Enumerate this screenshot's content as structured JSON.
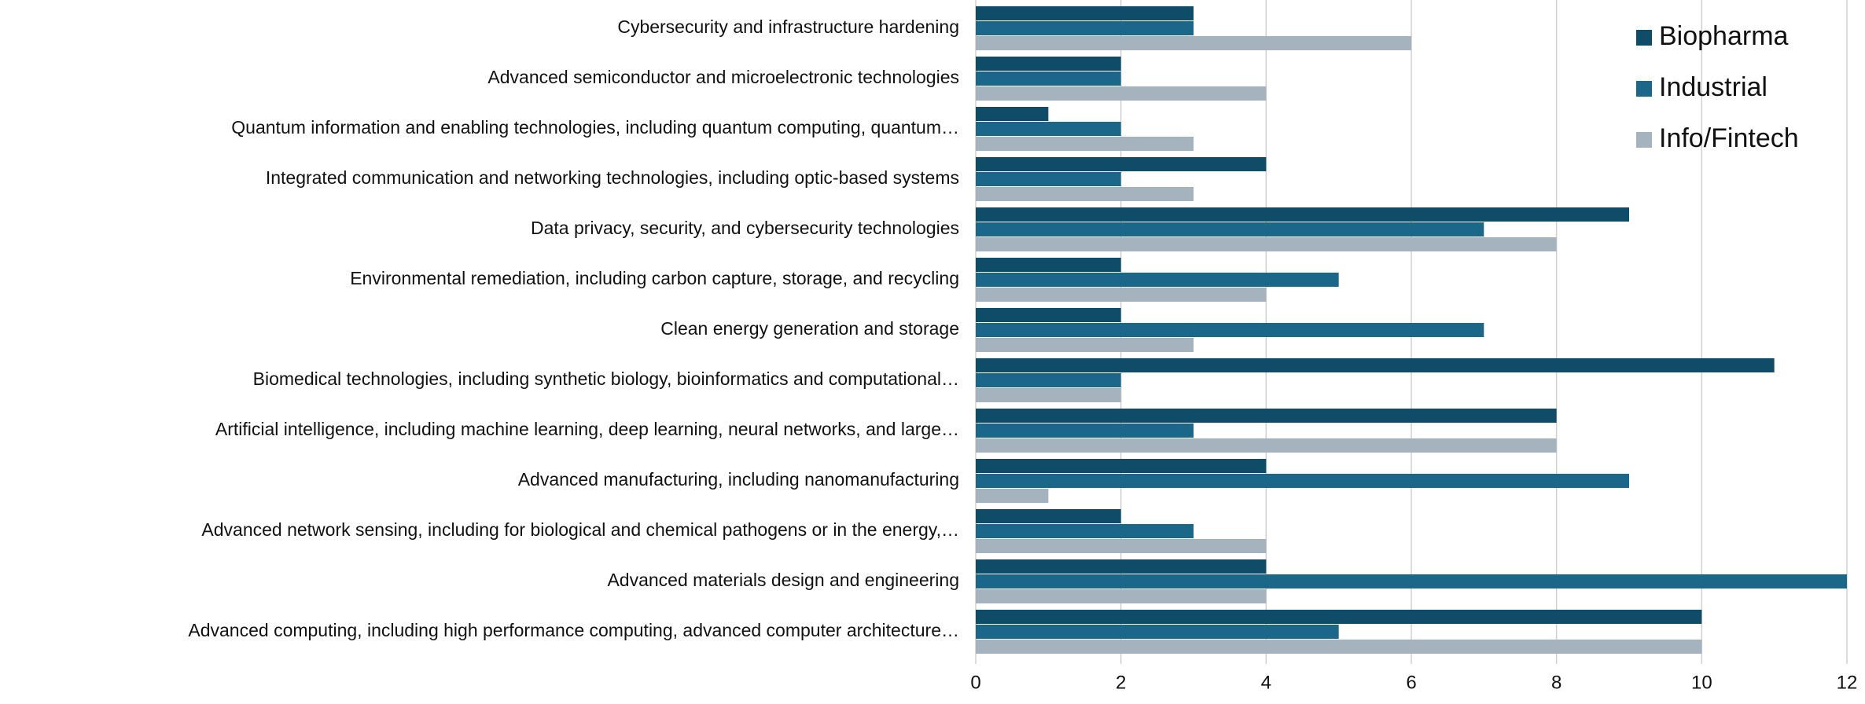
{
  "chart_data": {
    "type": "bar",
    "orientation": "horizontal",
    "categories": [
      "Cybersecurity and infrastructure hardening",
      "Advanced semiconductor and microelectronic technologies",
      "Quantum information and enabling technologies, including quantum computing, quantum…",
      "Integrated communication and networking technologies, including optic-based systems",
      "Data privacy, security, and cybersecurity technologies",
      "Environmental remediation, including carbon capture, storage, and recycling",
      "Clean energy generation and storage",
      "Biomedical technologies, including synthetic biology, bioinformatics and computational…",
      "Artificial intelligence, including machine learning, deep learning, neural networks, and large…",
      "Advanced manufacturing, including nanomanufacturing",
      "Advanced network sensing, including for biological and chemical pathogens or in the energy,…",
      "Advanced materials design and engineering",
      "Advanced computing, including high performance computing, advanced computer architecture…"
    ],
    "series": [
      {
        "name": "Biopharma",
        "color": "#0f4c68",
        "values": [
          3,
          2,
          1,
          4,
          9,
          2,
          2,
          11,
          8,
          4,
          2,
          4,
          10
        ]
      },
      {
        "name": "Industrial",
        "color": "#1b6789",
        "values": [
          3,
          2,
          2,
          2,
          7,
          5,
          7,
          2,
          3,
          9,
          3,
          12,
          5
        ]
      },
      {
        "name": "Info/Fintech",
        "color": "#a5b3be",
        "values": [
          6,
          4,
          3,
          3,
          8,
          4,
          3,
          2,
          8,
          1,
          4,
          4,
          10
        ]
      }
    ],
    "xlim": [
      0,
      12
    ],
    "xticks": [
      0,
      2,
      4,
      6,
      8,
      10,
      12
    ],
    "grid": true,
    "legend": "top-right"
  }
}
